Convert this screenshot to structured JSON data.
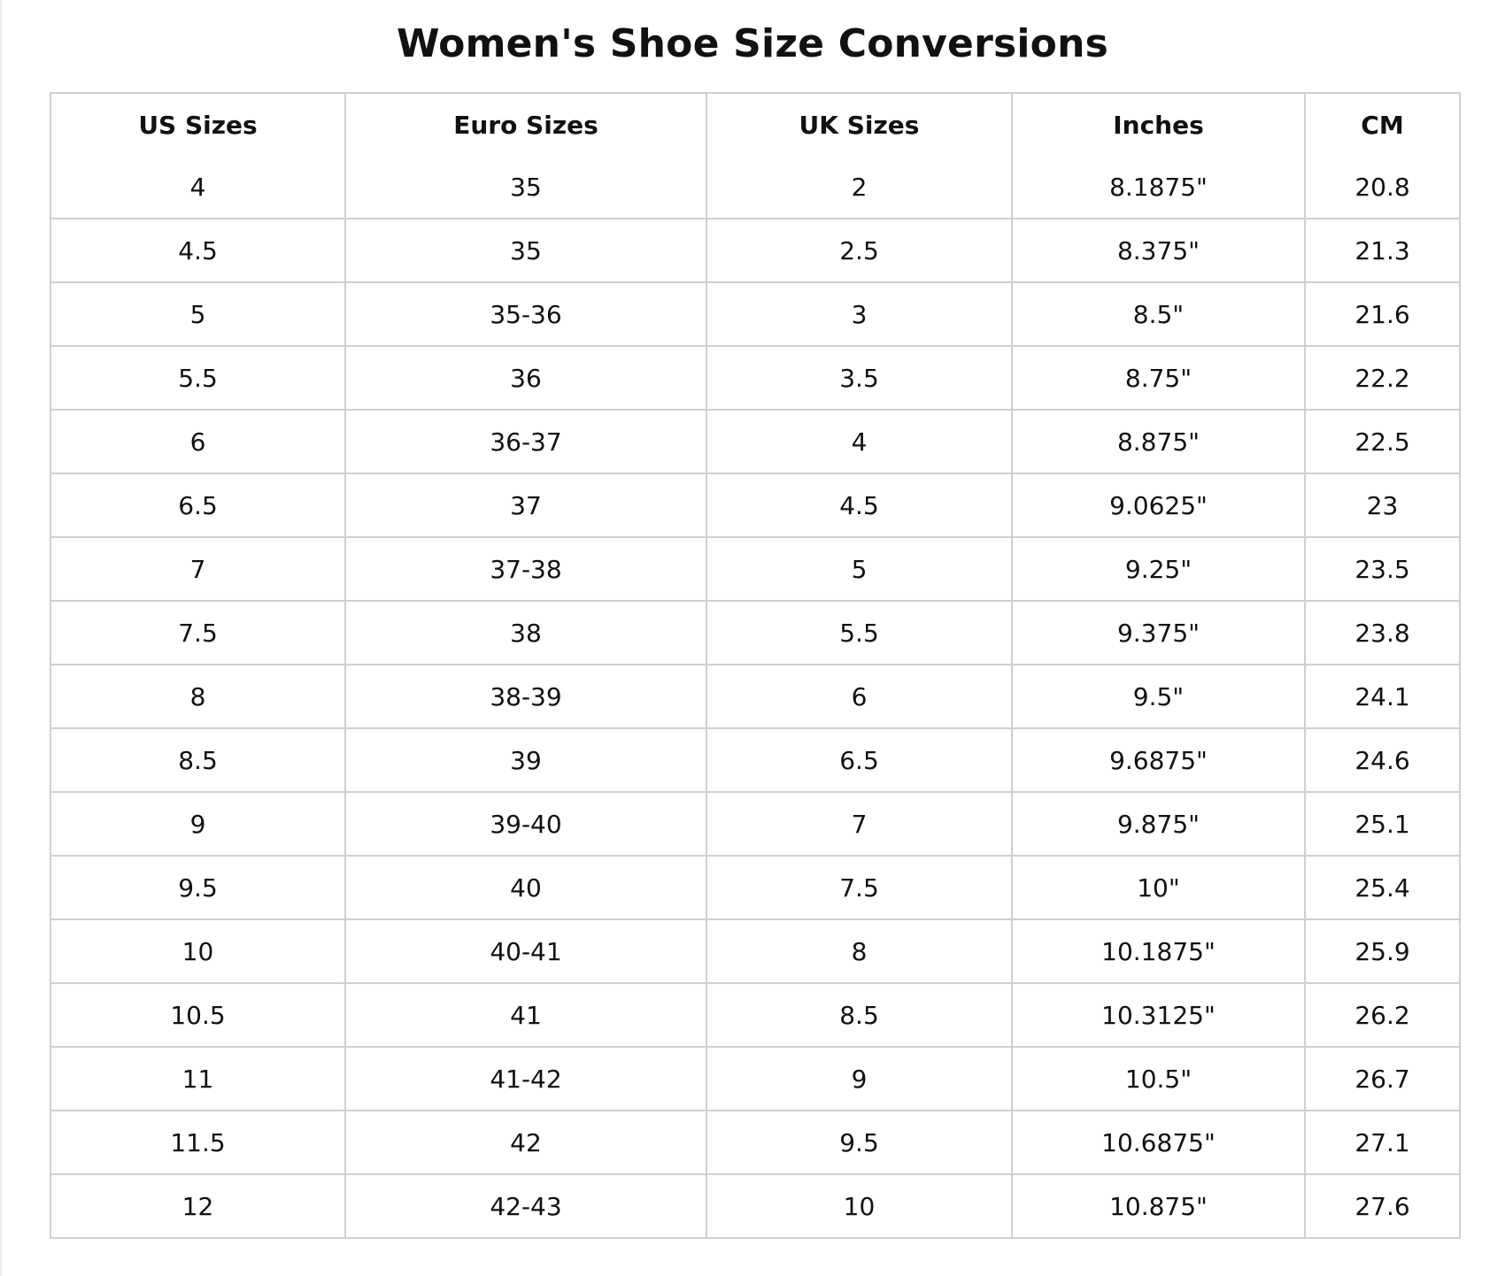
{
  "title": "Women's Shoe Size Conversions",
  "table": {
    "headers": [
      "US Sizes",
      "Euro Sizes",
      "UK Sizes",
      "Inches",
      "CM"
    ],
    "rows": [
      [
        "4",
        "35",
        "2",
        "8.1875\"",
        "20.8"
      ],
      [
        "4.5",
        "35",
        "2.5",
        "8.375\"",
        "21.3"
      ],
      [
        "5",
        "35-36",
        "3",
        "8.5\"",
        "21.6"
      ],
      [
        "5.5",
        "36",
        "3.5",
        "8.75\"",
        "22.2"
      ],
      [
        "6",
        "36-37",
        "4",
        "8.875\"",
        "22.5"
      ],
      [
        "6.5",
        "37",
        "4.5",
        "9.0625\"",
        "23"
      ],
      [
        "7",
        "37-38",
        "5",
        "9.25\"",
        "23.5"
      ],
      [
        "7.5",
        "38",
        "5.5",
        "9.375\"",
        "23.8"
      ],
      [
        "8",
        "38-39",
        "6",
        "9.5\"",
        "24.1"
      ],
      [
        "8.5",
        "39",
        "6.5",
        "9.6875\"",
        "24.6"
      ],
      [
        "9",
        "39-40",
        "7",
        "9.875\"",
        "25.1"
      ],
      [
        "9.5",
        "40",
        "7.5",
        "10\"",
        "25.4"
      ],
      [
        "10",
        "40-41",
        "8",
        "10.1875\"",
        "25.9"
      ],
      [
        "10.5",
        "41",
        "8.5",
        "10.3125\"",
        "26.2"
      ],
      [
        "11",
        "41-42",
        "9",
        "10.5\"",
        "26.7"
      ],
      [
        "11.5",
        "42",
        "9.5",
        "10.6875\"",
        "27.1"
      ],
      [
        "12",
        "42-43",
        "10",
        "10.875\"",
        "27.6"
      ]
    ]
  }
}
